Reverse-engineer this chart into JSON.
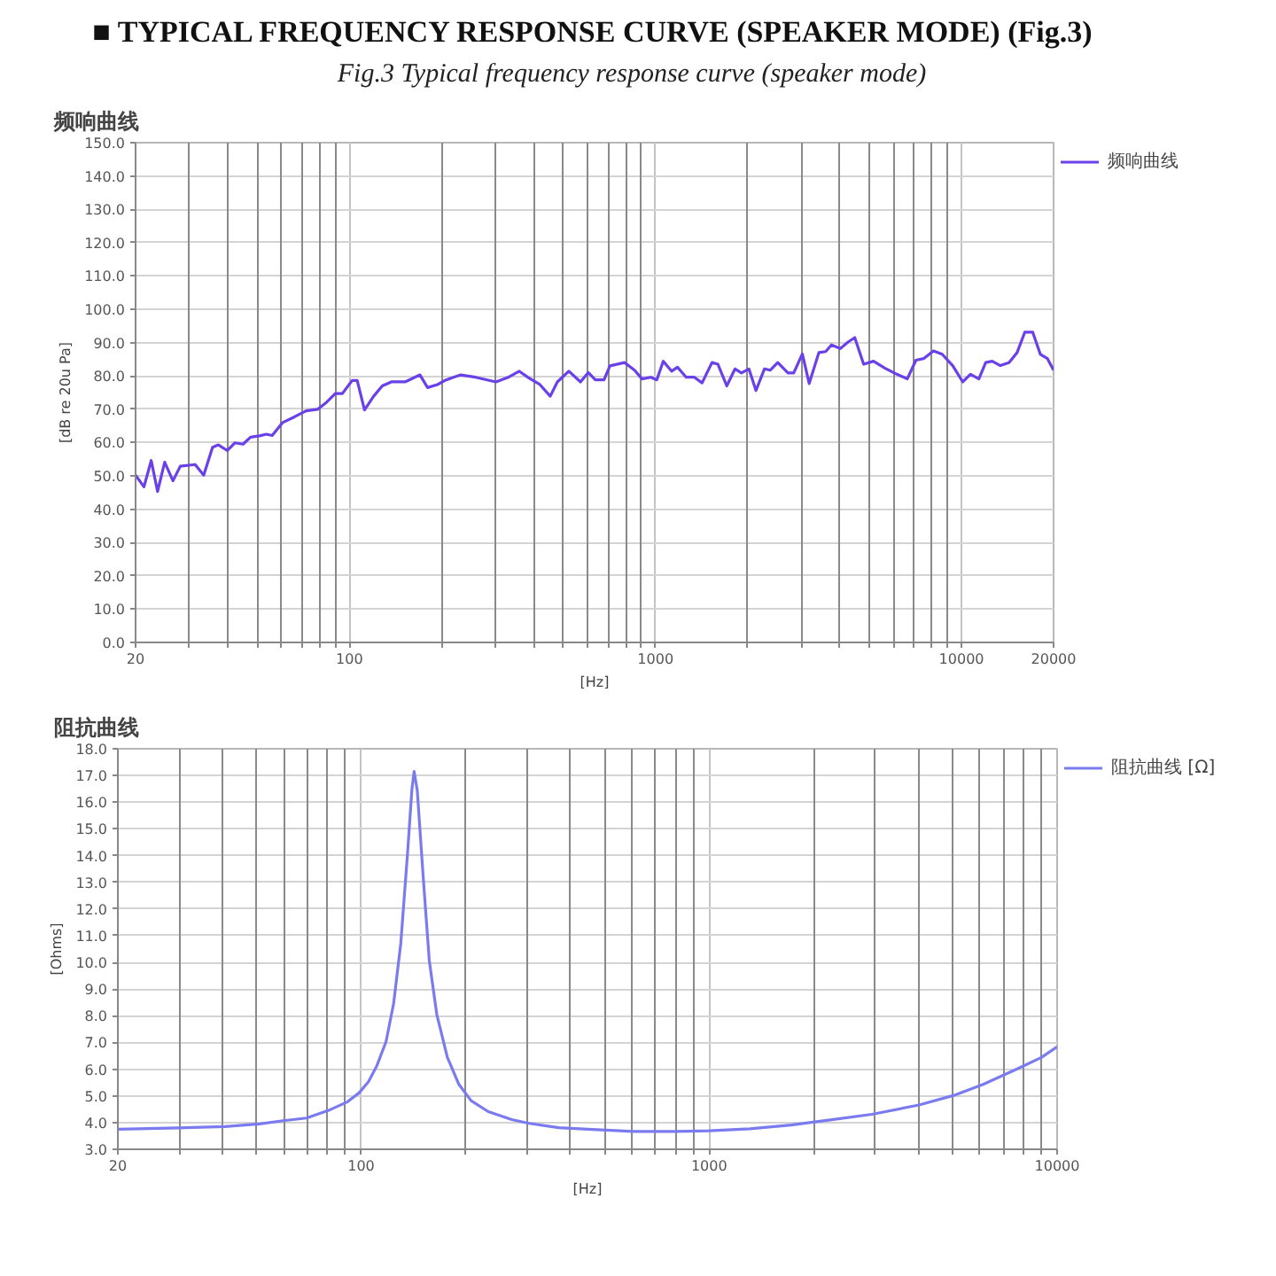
{
  "chart_data": [
    {
      "type": "other",
      "title": "■ TYPICAL FREQUENCY RESPONSE CURVE (SPEAKER MODE) (Fig.3)",
      "subtitle": "Fig.3 Typical frequency response curve (speaker mode)"
    },
    {
      "type": "line",
      "title": "频响曲线",
      "xlabel": "[Hz]",
      "ylabel": "[dB re 20u Pa]",
      "log": "x",
      "grid": true,
      "legend": "top right",
      "xlim": [
        20,
        20000
      ],
      "ylim": [
        0,
        150
      ],
      "xticks": [
        20,
        {
          "value": 30,
          "label": null
        },
        {
          "value": 40,
          "label": null
        },
        {
          "value": 50,
          "label": null
        },
        {
          "value": 60,
          "label": null
        },
        {
          "value": 70,
          "label": null
        },
        {
          "value": 80,
          "label": null
        },
        {
          "value": 90,
          "label": null
        },
        100,
        {
          "value": 200,
          "label": null
        },
        {
          "value": 300,
          "label": null
        },
        {
          "value": 400,
          "label": null
        },
        {
          "value": 500,
          "label": null
        },
        {
          "value": 600,
          "label": null
        },
        {
          "value": 700,
          "label": null
        },
        {
          "value": 800,
          "label": null
        },
        {
          "value": 900,
          "label": null
        },
        1000,
        {
          "value": 2000,
          "label": null
        },
        {
          "value": 3000,
          "label": null
        },
        {
          "value": 4000,
          "label": null
        },
        {
          "value": 5000,
          "label": null
        },
        {
          "value": 6000,
          "label": null
        },
        {
          "value": 7000,
          "label": null
        },
        {
          "value": 8000,
          "label": null
        },
        {
          "value": 9000,
          "label": null
        },
        10000,
        20000
      ],
      "yticks": [
        {
          "value": 0,
          "label": "0.0"
        },
        {
          "value": 10,
          "label": "10.0"
        },
        {
          "value": 20,
          "label": "20.0"
        },
        {
          "value": 30,
          "label": "30.0"
        },
        {
          "value": 40,
          "label": "40.0"
        },
        {
          "value": 50,
          "label": "50.0"
        },
        {
          "value": 60,
          "label": "60.0"
        },
        {
          "value": 70,
          "label": "70.0"
        },
        {
          "value": 80,
          "label": "80.0"
        },
        {
          "value": 90,
          "label": "90.0"
        },
        {
          "value": 100,
          "label": "100.0"
        },
        {
          "value": 110,
          "label": "110.0"
        },
        {
          "value": 120,
          "label": "120.0"
        },
        {
          "value": 130,
          "label": "130.0"
        },
        {
          "value": 140,
          "label": "140.0"
        },
        {
          "value": 150,
          "label": "150.0"
        }
      ],
      "x": [
        20,
        21.3,
        22.5,
        23.6,
        24.9,
        26.5,
        28,
        31.3,
        33.4,
        35.7,
        37.3,
        39.9,
        42.2,
        44.9,
        47.5,
        50.8,
        53.5,
        55.9,
        60.5,
        66.1,
        72.2,
        78.8,
        84.2,
        89.9,
        94.8,
        102,
        106,
        112,
        120,
        128,
        137,
        152,
        170,
        180,
        194,
        207,
        231,
        258,
        301,
        329,
        359,
        384,
        419,
        453,
        478,
        521,
        569,
        603,
        636,
        679,
        710,
        793,
        854,
        904,
        966,
        1010,
        1060,
        1130,
        1180,
        1260,
        1340,
        1420,
        1530,
        1600,
        1710,
        1820,
        1910,
        2020,
        2130,
        2270,
        2370,
        2510,
        2710,
        2830,
        3020,
        3180,
        3420,
        3600,
        3760,
        4020,
        4250,
        4480,
        4790,
        5160,
        5630,
        6150,
        6650,
        7100,
        7520,
        8100,
        8650,
        9360,
        10100,
        10700,
        11400,
        12000,
        12600,
        13400,
        14300,
        15200,
        16100,
        17100,
        18100,
        19100,
        20000
      ],
      "series": [
        {
          "name": "频响曲线",
          "color": "#6a40e8",
          "values": [
            50.2,
            46.7,
            54.6,
            45.3,
            54.1,
            48.5,
            52.9,
            53.4,
            50.2,
            58.6,
            59.3,
            57.6,
            59.9,
            59.5,
            61.6,
            62.0,
            62.5,
            62.1,
            66.0,
            67.7,
            69.5,
            70.0,
            72.1,
            74.7,
            74.7,
            78.6,
            78.6,
            69.8,
            73.9,
            77.0,
            78.2,
            78.2,
            80.3,
            76.5,
            77.4,
            78.8,
            80.3,
            79.6,
            78.2,
            79.5,
            81.4,
            79.5,
            77.4,
            73.9,
            78.2,
            81.4,
            78.2,
            81.0,
            78.8,
            78.8,
            83.0,
            84.0,
            81.7,
            79.1,
            79.6,
            78.8,
            84.4,
            81.4,
            82.6,
            79.6,
            79.6,
            77.9,
            84.0,
            83.5,
            77.0,
            82.1,
            80.9,
            82.1,
            75.6,
            82.1,
            81.7,
            84.0,
            80.9,
            80.9,
            86.6,
            77.7,
            87.0,
            87.3,
            89.3,
            88.2,
            90.1,
            91.5,
            83.5,
            84.4,
            82.3,
            80.5,
            79.1,
            84.7,
            85.2,
            87.5,
            86.5,
            83.1,
            78.2,
            80.5,
            79.1,
            84.0,
            84.4,
            83.1,
            84.0,
            87.0,
            93.1,
            93.1,
            86.5,
            85.2,
            81.7
          ]
        }
      ]
    },
    {
      "type": "line",
      "title": "阻抗曲线",
      "xlabel": "[Hz]",
      "ylabel": "[Ohms]",
      "log": "x",
      "grid": true,
      "legend": "top right",
      "xlim": [
        20,
        10000
      ],
      "ylim": [
        3,
        18
      ],
      "xticks": [
        20,
        {
          "value": 30,
          "label": null
        },
        {
          "value": 40,
          "label": null
        },
        {
          "value": 50,
          "label": null
        },
        {
          "value": 60,
          "label": null
        },
        {
          "value": 70,
          "label": null
        },
        {
          "value": 80,
          "label": null
        },
        {
          "value": 90,
          "label": null
        },
        100,
        {
          "value": 200,
          "label": null
        },
        {
          "value": 300,
          "label": null
        },
        {
          "value": 400,
          "label": null
        },
        {
          "value": 500,
          "label": null
        },
        {
          "value": 600,
          "label": null
        },
        {
          "value": 700,
          "label": null
        },
        {
          "value": 800,
          "label": null
        },
        {
          "value": 900,
          "label": null
        },
        1000,
        {
          "value": 2000,
          "label": null
        },
        {
          "value": 3000,
          "label": null
        },
        {
          "value": 4000,
          "label": null
        },
        {
          "value": 5000,
          "label": null
        },
        {
          "value": 6000,
          "label": null
        },
        {
          "value": 7000,
          "label": null
        },
        {
          "value": 8000,
          "label": null
        },
        {
          "value": 9000,
          "label": null
        },
        10000
      ],
      "yticks": [
        {
          "value": 3,
          "label": "3.0"
        },
        {
          "value": 4,
          "label": "4.0"
        },
        {
          "value": 5,
          "label": "5.0"
        },
        {
          "value": 6,
          "label": "6.0"
        },
        {
          "value": 7,
          "label": "7.0"
        },
        {
          "value": 8,
          "label": "8.0"
        },
        {
          "value": 9,
          "label": "9.0"
        },
        {
          "value": 10,
          "label": "10.0"
        },
        {
          "value": 11,
          "label": "11.0"
        },
        {
          "value": 12,
          "label": "12.0"
        },
        {
          "value": 13,
          "label": "13.0"
        },
        {
          "value": 14,
          "label": "14.0"
        },
        {
          "value": 15,
          "label": "15.0"
        },
        {
          "value": 16,
          "label": "16.0"
        },
        {
          "value": 17,
          "label": "17.0"
        },
        {
          "value": 18,
          "label": "18.0"
        }
      ],
      "x": [
        20,
        29.7,
        40.5,
        51.1,
        59.7,
        69.7,
        81.4,
        91.5,
        98.8,
        105,
        111,
        118,
        124,
        130,
        136,
        140,
        142,
        145,
        151,
        157,
        165,
        177,
        191,
        207,
        232,
        271,
        304,
        370,
        449,
        606,
        793,
        1000,
        1310,
        1720,
        2250,
        2940,
        4010,
        5050,
        6130,
        7730,
        9010,
        10000
      ],
      "series": [
        {
          "name": "阻抗曲线 [Ω]",
          "color": "#7b7bf0",
          "values": [
            3.75,
            3.8,
            3.85,
            3.95,
            4.07,
            4.17,
            4.48,
            4.78,
            5.12,
            5.53,
            6.13,
            7.04,
            8.46,
            10.7,
            14.1,
            16.5,
            17.15,
            16.44,
            13.1,
            10.07,
            8.05,
            6.44,
            5.43,
            4.82,
            4.41,
            4.11,
            3.97,
            3.81,
            3.75,
            3.67,
            3.67,
            3.69,
            3.77,
            3.91,
            4.11,
            4.31,
            4.66,
            5.02,
            5.43,
            6.03,
            6.44,
            6.84
          ]
        }
      ]
    }
  ]
}
